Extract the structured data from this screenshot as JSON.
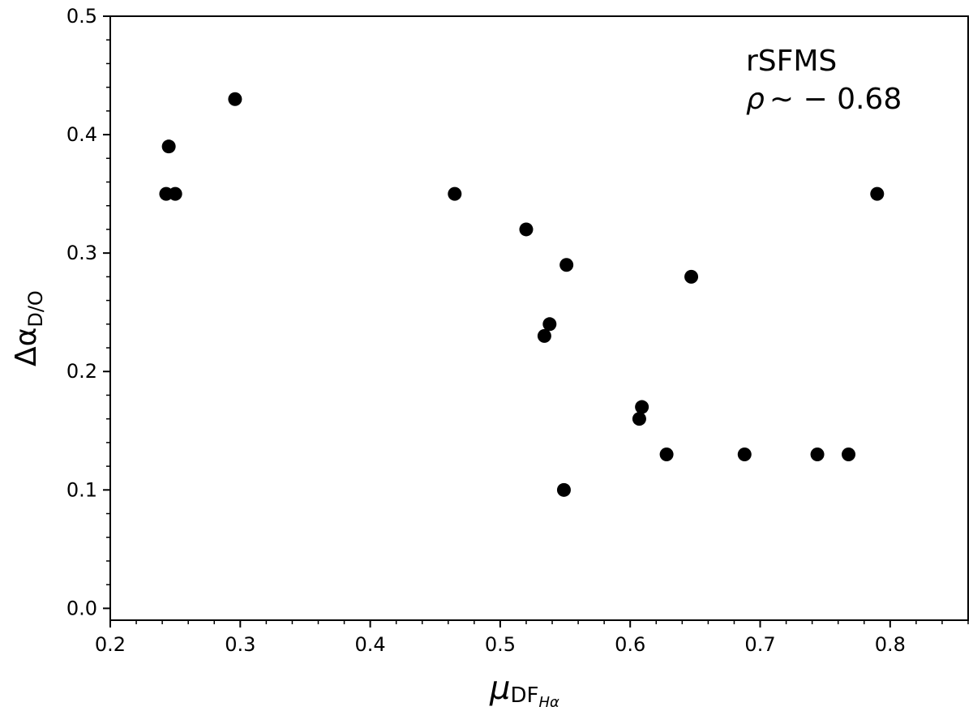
{
  "chart_data": {
    "type": "scatter",
    "title": "",
    "xlabel": {
      "main": "μ",
      "sub": "DF",
      "subsub": "Hα"
    },
    "ylabel": {
      "main": "Δα",
      "sub": "D/O"
    },
    "xlim": [
      0.2,
      0.86
    ],
    "ylim": [
      -0.01,
      0.5
    ],
    "xticks": [
      0.2,
      0.3,
      0.4,
      0.5,
      0.6,
      0.7,
      0.8
    ],
    "xtick_labels": [
      "0.2",
      "0.3",
      "0.4",
      "0.5",
      "0.6",
      "0.7",
      "0.8"
    ],
    "yticks": [
      0.0,
      0.1,
      0.2,
      0.3,
      0.4,
      0.5
    ],
    "ytick_labels": [
      "0.0",
      "0.1",
      "0.2",
      "0.3",
      "0.4",
      "0.5"
    ],
    "grid": false,
    "marker_color": "#000000",
    "annotations": {
      "line1": "rSFMS",
      "rho_symbol": "ρ",
      "rho_rest": "∼ − 0.68"
    },
    "x": [
      0.243,
      0.245,
      0.25,
      0.296,
      0.465,
      0.52,
      0.551,
      0.538,
      0.534,
      0.549,
      0.609,
      0.607,
      0.628,
      0.647,
      0.688,
      0.744,
      0.768,
      0.79
    ],
    "y": [
      0.35,
      0.39,
      0.35,
      0.43,
      0.35,
      0.32,
      0.29,
      0.24,
      0.23,
      0.1,
      0.17,
      0.16,
      0.13,
      0.28,
      0.13,
      0.13,
      0.13,
      0.35
    ]
  }
}
